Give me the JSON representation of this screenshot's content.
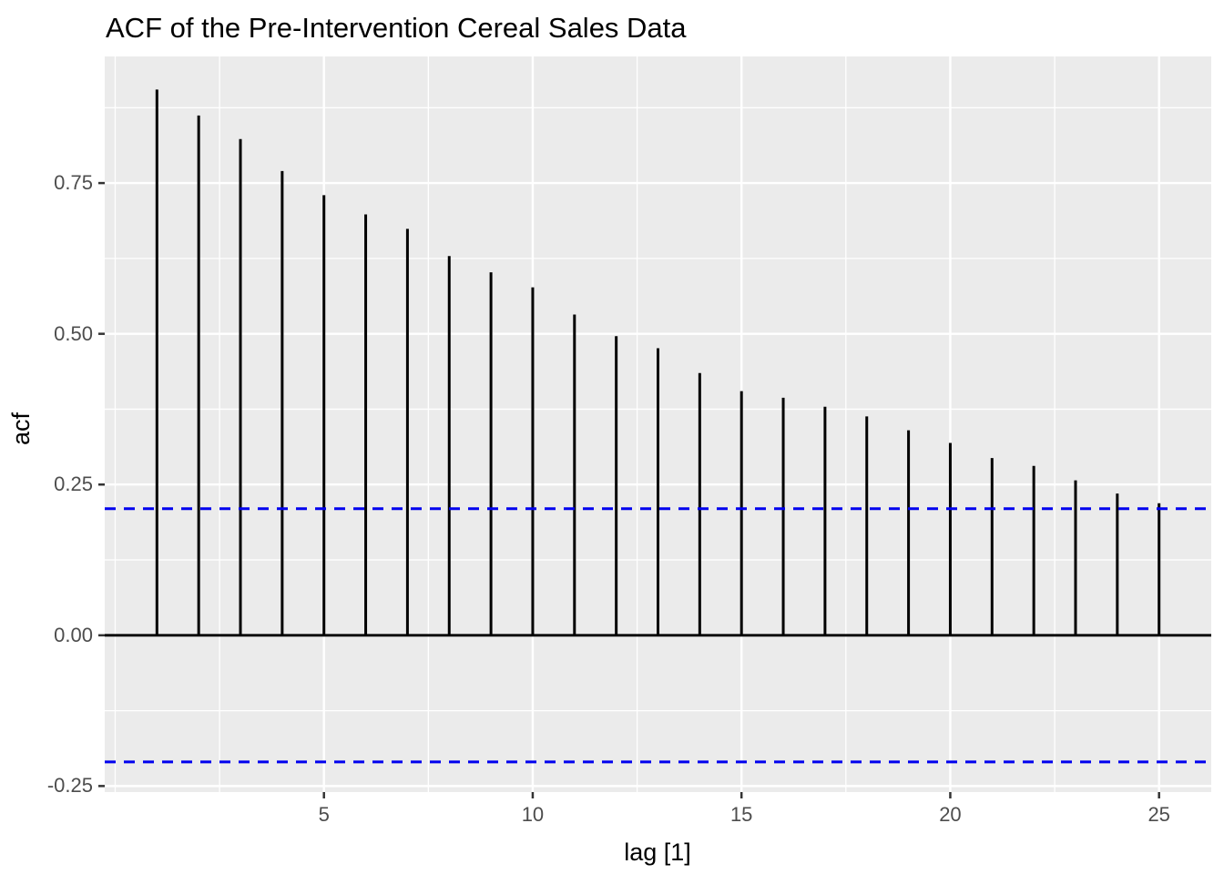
{
  "title": "ACF of the Pre-Intervention Cereal Sales Data",
  "chart_data": {
    "type": "bar",
    "subtype": "acf-stem-plot",
    "title": "ACF of the Pre-Intervention Cereal Sales Data",
    "xlabel": "lag [1]",
    "ylabel": "acf",
    "x": [
      1,
      2,
      3,
      4,
      5,
      6,
      7,
      8,
      9,
      10,
      11,
      12,
      13,
      14,
      15,
      16,
      17,
      18,
      19,
      20,
      21,
      22,
      23,
      24,
      25
    ],
    "values": [
      0.905,
      0.862,
      0.823,
      0.77,
      0.73,
      0.698,
      0.674,
      0.629,
      0.602,
      0.577,
      0.532,
      0.496,
      0.476,
      0.435,
      0.405,
      0.394,
      0.379,
      0.363,
      0.34,
      0.319,
      0.294,
      0.281,
      0.257,
      0.235,
      0.219
    ],
    "confidence_bounds": {
      "upper": 0.21,
      "lower": -0.21,
      "line_style": "dashed"
    },
    "zero_line": 0,
    "xlim": [
      -0.25,
      26.25
    ],
    "ylim": [
      -0.26,
      0.96
    ],
    "x_ticks": {
      "values": [
        5,
        10,
        15,
        20,
        25
      ],
      "labels": [
        "5",
        "10",
        "15",
        "20",
        "25"
      ]
    },
    "x_minor_gridlines": [
      0,
      2.5,
      7.5,
      12.5,
      17.5,
      22.5
    ],
    "y_ticks": {
      "values": [
        0.75,
        0.5,
        0.25,
        0.0,
        -0.25
      ],
      "labels": [
        "0.75",
        "0.50",
        "0.25",
        "0.00",
        "-0.25"
      ]
    },
    "y_minor_gridlines": [
      0.875,
      0.625,
      0.375,
      0.125,
      -0.125
    ],
    "grid": true,
    "legend": "none",
    "colors": {
      "spike": "#000000",
      "zero_line": "#000000",
      "confidence_line": "#0000EE",
      "panel_background": "#EBEBEB",
      "gridline": "#FFFFFF",
      "tick_mark": "#333333",
      "tick_label": "#4D4D4D",
      "title_text": "#000000",
      "page_background": "#FFFFFF"
    }
  }
}
